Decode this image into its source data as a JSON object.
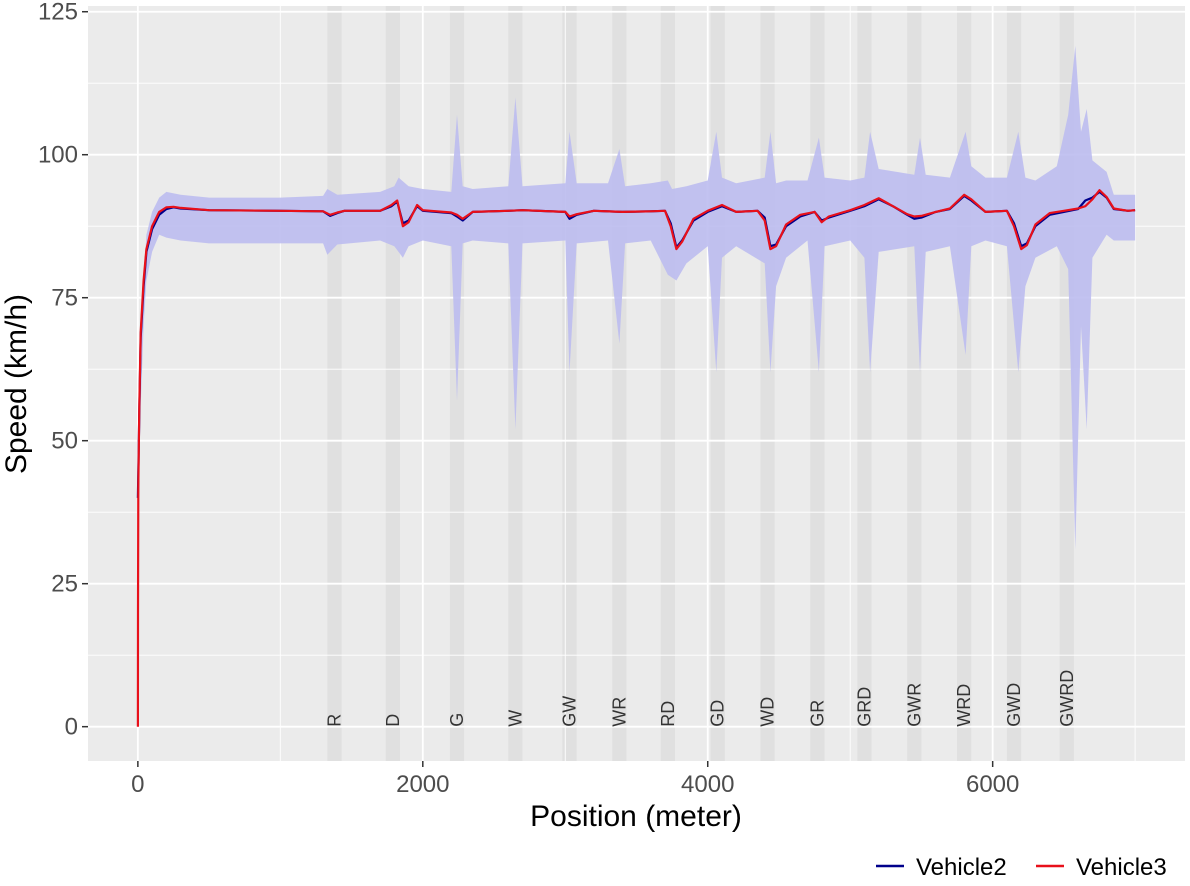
{
  "chart_data": {
    "type": "line",
    "title": "",
    "xlabel": "Position (meter)",
    "ylabel": "Speed (km/h)",
    "xlim": [
      -350,
      7350
    ],
    "ylim": [
      -6,
      126
    ],
    "x_ticks": [
      0,
      2000,
      4000,
      6000
    ],
    "y_ticks": [
      0,
      25,
      50,
      75,
      100,
      125
    ],
    "x_tick_labels": [
      "0",
      "2000",
      "4000",
      "6000"
    ],
    "y_tick_labels": [
      "0",
      "25",
      "50",
      "75",
      "100",
      "125"
    ],
    "grid": true,
    "legend_position": "bottom-right",
    "colors": {
      "panel": "#EBEBEB",
      "grid": "#FFFFFF",
      "zone": "#E0E0E0",
      "band": "#BDBDF0",
      "vehicle2": "#00008B",
      "vehicle3": "#E8101A"
    },
    "zones": [
      {
        "label": "R",
        "x": 1380
      },
      {
        "label": "D",
        "x": 1790
      },
      {
        "label": "G",
        "x": 2240
      },
      {
        "label": "W",
        "x": 2650
      },
      {
        "label": "GW",
        "x": 3030
      },
      {
        "label": "WR",
        "x": 3380
      },
      {
        "label": "RD",
        "x": 3720
      },
      {
        "label": "GD",
        "x": 4070
      },
      {
        "label": "WD",
        "x": 4420
      },
      {
        "label": "GR",
        "x": 4770
      },
      {
        "label": "GRD",
        "x": 5100
      },
      {
        "label": "GWR",
        "x": 5450
      },
      {
        "label": "WRD",
        "x": 5800
      },
      {
        "label": "GWD",
        "x": 6150
      },
      {
        "label": "GWRD",
        "x": 6520
      }
    ],
    "series": [
      {
        "name": "Vehicle2",
        "x": [
          0,
          10,
          20,
          40,
          60,
          100,
          150,
          200,
          250,
          300,
          500,
          1000,
          1300,
          1350,
          1400,
          1450,
          1700,
          1780,
          1820,
          1860,
          1900,
          1960,
          2000,
          2200,
          2240,
          2280,
          2350,
          2600,
          2700,
          3000,
          3030,
          3080,
          3200,
          3400,
          3600,
          3700,
          3740,
          3780,
          3820,
          3900,
          4000,
          4100,
          4200,
          4350,
          4400,
          4440,
          4480,
          4550,
          4650,
          4750,
          4800,
          4850,
          5000,
          5100,
          5200,
          5300,
          5400,
          5450,
          5500,
          5600,
          5700,
          5800,
          5850,
          5950,
          6100,
          6150,
          6200,
          6240,
          6300,
          6400,
          6500,
          6600,
          6650,
          6700,
          6750,
          6800,
          6850,
          6950,
          7000
        ],
        "y": [
          40,
          55,
          68,
          77,
          83,
          87,
          89.5,
          90.5,
          90.8,
          90.6,
          90.3,
          90.2,
          90.1,
          89.3,
          89.8,
          90.2,
          90.2,
          91,
          91.8,
          88,
          88.5,
          91,
          90.2,
          89.8,
          89.2,
          88.5,
          90,
          90.2,
          90.3,
          90,
          88.8,
          89.5,
          90.2,
          90,
          90.1,
          90.2,
          88,
          83.8,
          85,
          88.5,
          90,
          91,
          90,
          90.2,
          89,
          84,
          84.3,
          87.5,
          89.2,
          90,
          88.5,
          89,
          90.2,
          91,
          92.2,
          91,
          89.5,
          88.8,
          89,
          90,
          90.5,
          92.8,
          92,
          90,
          90.2,
          88,
          84,
          84.5,
          87.5,
          89.5,
          90,
          90.5,
          92,
          92.5,
          93.5,
          92.5,
          90.5,
          90.2,
          90.3
        ]
      },
      {
        "name": "Vehicle3",
        "x": [
          0,
          1,
          3,
          10,
          20,
          40,
          60,
          100,
          150,
          200,
          250,
          300,
          500,
          1000,
          1300,
          1350,
          1400,
          1450,
          1700,
          1780,
          1820,
          1860,
          1900,
          1960,
          2000,
          2200,
          2240,
          2280,
          2350,
          2600,
          2700,
          3000,
          3030,
          3080,
          3200,
          3400,
          3600,
          3700,
          3740,
          3780,
          3820,
          3900,
          4000,
          4100,
          4200,
          4350,
          4400,
          4440,
          4480,
          4550,
          4650,
          4750,
          4800,
          4850,
          5000,
          5100,
          5200,
          5300,
          5400,
          5450,
          5500,
          5600,
          5700,
          5800,
          5850,
          5950,
          6100,
          6150,
          6200,
          6240,
          6300,
          6400,
          6500,
          6600,
          6650,
          6700,
          6750,
          6800,
          6850,
          6950,
          7000
        ],
        "y": [
          0,
          20,
          42,
          56,
          69,
          78,
          83.5,
          87.5,
          90,
          90.8,
          90.9,
          90.7,
          90.3,
          90.2,
          90.1,
          89.5,
          89.9,
          90.2,
          90.2,
          91.2,
          92,
          87.5,
          88.2,
          91.2,
          90.3,
          89.9,
          89.5,
          88.8,
          90,
          90.2,
          90.3,
          90,
          89.2,
          89.6,
          90.2,
          90,
          90.1,
          90.2,
          87.5,
          83.5,
          84.8,
          88.8,
          90.2,
          91.2,
          90,
          90.2,
          88.5,
          83.5,
          84,
          87.8,
          89.5,
          90,
          88.2,
          89.2,
          90.3,
          91.2,
          92.4,
          91,
          89.6,
          89.2,
          89.3,
          90,
          90.6,
          93,
          92.2,
          90,
          90.2,
          87.5,
          83.5,
          84.2,
          87.8,
          89.8,
          90.2,
          90.6,
          91,
          92.2,
          93.8,
          92.6,
          90.6,
          90.2,
          90.3
        ]
      },
      {
        "name": "",
        "x": [
          5,
          20,
          40,
          60,
          100,
          150,
          200,
          300,
          500,
          1000,
          1300,
          1330,
          1400,
          1700,
          1800,
          1860,
          1900,
          2000,
          2200,
          2240,
          2280,
          2350,
          2600,
          2650,
          2700,
          3000,
          3030,
          3080,
          3300,
          3380,
          3420,
          3600,
          3720,
          3780,
          3850,
          4000,
          4060,
          4100,
          4200,
          4400,
          4440,
          4480,
          4550,
          4700,
          4780,
          4820,
          5000,
          5100,
          5140,
          5200,
          5450,
          5490,
          5530,
          5700,
          5810,
          5850,
          5950,
          6100,
          6180,
          6230,
          6300,
          6450,
          6530,
          6580,
          6620,
          6660,
          6700,
          6800,
          6850,
          7000
        ],
        "y": [
          40,
          56,
          70,
          78,
          83,
          86,
          85.5,
          85,
          84.5,
          84.5,
          84.5,
          82.5,
          84.3,
          85,
          84,
          82,
          84,
          85,
          84,
          57,
          84.5,
          85,
          84.5,
          52,
          84.5,
          85,
          62,
          84.5,
          85,
          67,
          84.5,
          85,
          79,
          78,
          81,
          84,
          62,
          82,
          84,
          81,
          62,
          77,
          82,
          85,
          62,
          84,
          85,
          82,
          62,
          83,
          84,
          62,
          83,
          84,
          65,
          84,
          85,
          84,
          62,
          77,
          82,
          84,
          80,
          31,
          70,
          52,
          82,
          86,
          85,
          85
        ]
      },
      {
        "name": "",
        "x": [
          5,
          20,
          40,
          60,
          100,
          150,
          200,
          300,
          500,
          1000,
          1300,
          1330,
          1400,
          1700,
          1800,
          1830,
          1900,
          2000,
          2200,
          2240,
          2280,
          2350,
          2600,
          2650,
          2700,
          3000,
          3030,
          3080,
          3300,
          3380,
          3420,
          3600,
          3720,
          3750,
          3850,
          4000,
          4060,
          4100,
          4200,
          4400,
          4440,
          4480,
          4550,
          4700,
          4780,
          4820,
          5000,
          5100,
          5140,
          5200,
          5450,
          5490,
          5530,
          5700,
          5810,
          5850,
          5950,
          6100,
          6180,
          6230,
          6300,
          6450,
          6530,
          6580,
          6620,
          6660,
          6700,
          6800,
          6850,
          7000
        ],
        "y": [
          40,
          60,
          78,
          86,
          90,
          92.5,
          93.5,
          93,
          92.5,
          92.5,
          92.8,
          94,
          93,
          93.5,
          94.5,
          96,
          94.5,
          94,
          93.5,
          107,
          94.5,
          94,
          94.5,
          110,
          94.5,
          95,
          104,
          95,
          95,
          101,
          94.5,
          95,
          95.5,
          94,
          94.5,
          95.5,
          104,
          96,
          95,
          96,
          104,
          95,
          95.5,
          95.5,
          103,
          96,
          95.5,
          96,
          104,
          97.5,
          96.5,
          103,
          96.5,
          96,
          104,
          98,
          96,
          96,
          104,
          96,
          95.5,
          98,
          107,
          119,
          104,
          108,
          99,
          97,
          93,
          93
        ]
      }
    ]
  },
  "legend": {
    "items": [
      {
        "label": "Vehicle2",
        "color": "#00008B"
      },
      {
        "label": "Vehicle3",
        "color": "#E8101A"
      }
    ]
  }
}
